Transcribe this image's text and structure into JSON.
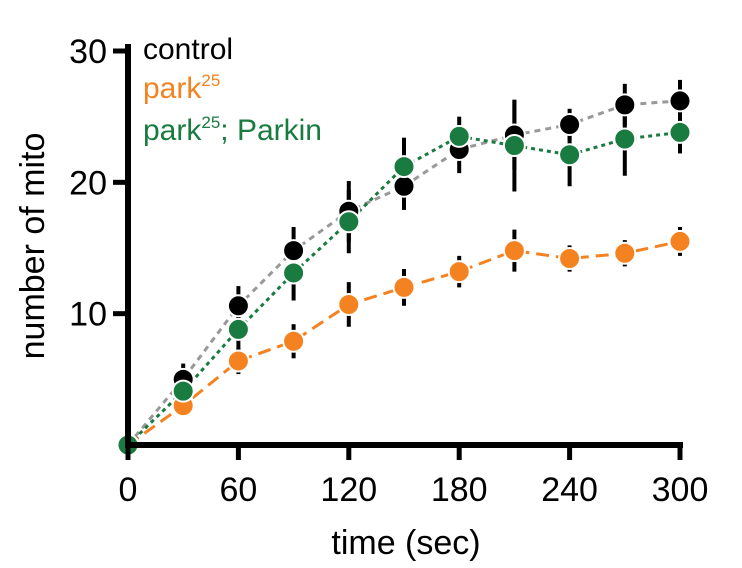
{
  "chart_data": {
    "type": "line",
    "xlabel": "time (sec)",
    "ylabel": "number of mito",
    "xlim": [
      0,
      300
    ],
    "ylim": [
      0,
      30
    ],
    "x_ticks": [
      "0",
      "60",
      "120",
      "180",
      "240",
      "300"
    ],
    "y_ticks": [
      "10",
      "20",
      "30"
    ],
    "x_tick_values": [
      0,
      60,
      120,
      180,
      240,
      300
    ],
    "y_tick_values": [
      10,
      20,
      30
    ],
    "legend_placement": "top-left",
    "x": [
      0,
      30,
      60,
      90,
      120,
      150,
      180,
      210,
      240,
      270,
      300
    ],
    "series": [
      {
        "name": "control",
        "legend_base": "control",
        "legend_sup": "",
        "legend_suffix": "",
        "color": "#000000",
        "line_color": "#999999",
        "dash": "6,5",
        "values": [
          0,
          5.0,
          10.6,
          14.8,
          17.8,
          19.7,
          22.5,
          23.6,
          24.4,
          25.9,
          26.2
        ],
        "errors": [
          0,
          1.2,
          1.5,
          1.8,
          2.3,
          1.8,
          1.8,
          2.6,
          1.2,
          1.6,
          1.6
        ]
      },
      {
        "name": "park25",
        "legend_base": "park",
        "legend_sup": "25",
        "legend_suffix": "",
        "color": "#f58220",
        "line_color": "#f58220",
        "dash": "13,7",
        "values": [
          0,
          3.0,
          6.4,
          7.9,
          10.7,
          12.0,
          13.2,
          14.8,
          14.2,
          14.6,
          15.5
        ],
        "errors": [
          0,
          0.8,
          1.0,
          1.3,
          1.7,
          1.4,
          1.2,
          1.6,
          1.0,
          1.0,
          1.1
        ]
      },
      {
        "name": "park25; Parkin",
        "legend_base": "park",
        "legend_sup": "25",
        "legend_suffix": "; Parkin",
        "color": "#1a7b40",
        "line_color": "#1a7b40",
        "dash": "4,4",
        "values": [
          0,
          4.1,
          8.8,
          13.1,
          17.0,
          21.2,
          23.5,
          22.8,
          22.1,
          23.3,
          23.8
        ],
        "errors": [
          0,
          0.8,
          2.2,
          2.1,
          2.4,
          2.2,
          1.5,
          3.5,
          2.4,
          2.8,
          1.6
        ]
      }
    ]
  }
}
